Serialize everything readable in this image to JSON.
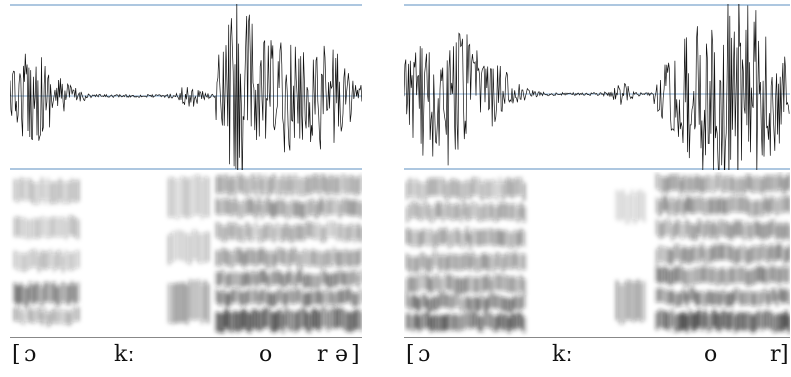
{
  "panels": [
    {
      "id": "left",
      "labels": {
        "open_bracket": "[",
        "vowel_1": "ɔ",
        "consonant": "kː",
        "vowel_2": "o",
        "consonant_2": "r",
        "vowel_3": "ə",
        "close_bracket": "]"
      }
    },
    {
      "id": "right",
      "labels": {
        "open_bracket": "[",
        "vowel_1": "ɔ",
        "consonant": "kː",
        "vowel_2": "o",
        "consonant_2": "r",
        "close_bracket": "]"
      }
    }
  ],
  "colors": {
    "guide_line": "#5b8fc0",
    "waveform": "#111111",
    "spectrogram_dark": "#1a1a1a"
  }
}
